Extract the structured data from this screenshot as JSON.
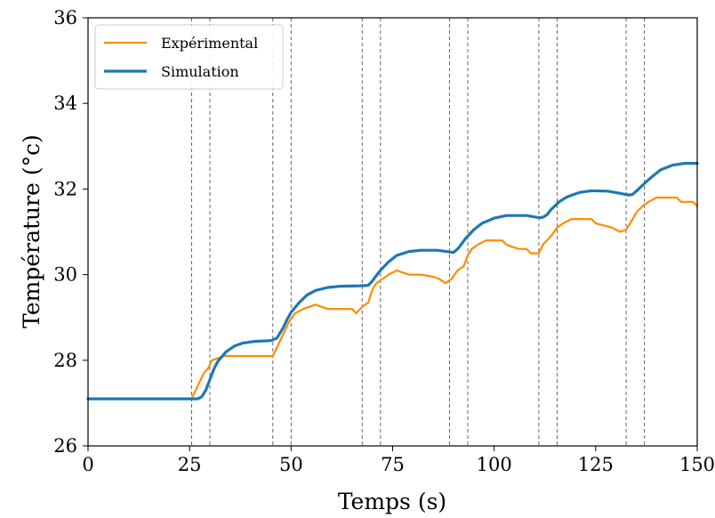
{
  "chart_data": {
    "type": "line",
    "title": "",
    "xlabel": "Temps (s)",
    "ylabel": "Température (°c)",
    "xlim": [
      0,
      150
    ],
    "ylim": [
      26,
      36
    ],
    "xticks": [
      0,
      25,
      50,
      75,
      100,
      125,
      150
    ],
    "yticks": [
      26,
      28,
      30,
      32,
      34,
      36
    ],
    "grid": false,
    "legend_position": "top-left",
    "vlines": [
      25.5,
      30,
      45.5,
      50,
      67.5,
      72,
      89,
      93.5,
      111,
      115.5,
      132.5,
      137
    ],
    "vline_style": "dashed",
    "series": [
      {
        "name": "Expérimental",
        "color": "#ff8c00",
        "points": [
          [
            0,
            27.1
          ],
          [
            25.5,
            27.1
          ],
          [
            26.5,
            27.3
          ],
          [
            27.5,
            27.5
          ],
          [
            28.5,
            27.7
          ],
          [
            29.5,
            27.8
          ],
          [
            30.5,
            28.0
          ],
          [
            32,
            28.05
          ],
          [
            33.5,
            28.1
          ],
          [
            45.5,
            28.1
          ],
          [
            46.5,
            28.3
          ],
          [
            48,
            28.6
          ],
          [
            49.5,
            28.9
          ],
          [
            51,
            29.1
          ],
          [
            53,
            29.2
          ],
          [
            56,
            29.3
          ],
          [
            59,
            29.2
          ],
          [
            62,
            29.2
          ],
          [
            65,
            29.2
          ],
          [
            66,
            29.1
          ],
          [
            67.5,
            29.25
          ],
          [
            69,
            29.35
          ],
          [
            70,
            29.65
          ],
          [
            71,
            29.8
          ],
          [
            72.5,
            29.9
          ],
          [
            74,
            30.0
          ],
          [
            76,
            30.1
          ],
          [
            79,
            30.0
          ],
          [
            82,
            30.0
          ],
          [
            85,
            29.95
          ],
          [
            86.5,
            29.9
          ],
          [
            88,
            29.8
          ],
          [
            89.5,
            29.9
          ],
          [
            91,
            30.1
          ],
          [
            92.5,
            30.2
          ],
          [
            93.5,
            30.45
          ],
          [
            94.5,
            30.6
          ],
          [
            96,
            30.7
          ],
          [
            98,
            30.8
          ],
          [
            102,
            30.8
          ],
          [
            103,
            30.7
          ],
          [
            106,
            30.6
          ],
          [
            108,
            30.6
          ],
          [
            109,
            30.5
          ],
          [
            111,
            30.5
          ],
          [
            112,
            30.7
          ],
          [
            114,
            30.9
          ],
          [
            115.5,
            31.1
          ],
          [
            117,
            31.2
          ],
          [
            119,
            31.3
          ],
          [
            124,
            31.3
          ],
          [
            125,
            31.2
          ],
          [
            129,
            31.1
          ],
          [
            131,
            31.0
          ],
          [
            132.5,
            31.05
          ],
          [
            133.5,
            31.2
          ],
          [
            135,
            31.45
          ],
          [
            136.5,
            31.6
          ],
          [
            138,
            31.7
          ],
          [
            140,
            31.8
          ],
          [
            145,
            31.8
          ],
          [
            146,
            31.7
          ],
          [
            149,
            31.7
          ],
          [
            150,
            31.6
          ]
        ]
      },
      {
        "name": "Simulation",
        "color": "#1f77b4",
        "points": [
          [
            0,
            27.1
          ],
          [
            27,
            27.1
          ],
          [
            28,
            27.15
          ],
          [
            29,
            27.3
          ],
          [
            30,
            27.55
          ],
          [
            31,
            27.8
          ],
          [
            32,
            27.98
          ],
          [
            34,
            28.2
          ],
          [
            36,
            28.33
          ],
          [
            38,
            28.4
          ],
          [
            41,
            28.44
          ],
          [
            45,
            28.46
          ],
          [
            46.5,
            28.52
          ],
          [
            48,
            28.75
          ],
          [
            49,
            28.95
          ],
          [
            50,
            29.12
          ],
          [
            52,
            29.35
          ],
          [
            54,
            29.53
          ],
          [
            56,
            29.63
          ],
          [
            59,
            29.7
          ],
          [
            62,
            29.73
          ],
          [
            67,
            29.74
          ],
          [
            69,
            29.75
          ],
          [
            70,
            29.85
          ],
          [
            71,
            29.98
          ],
          [
            72,
            30.1
          ],
          [
            74,
            30.3
          ],
          [
            76,
            30.45
          ],
          [
            79,
            30.54
          ],
          [
            82,
            30.57
          ],
          [
            86,
            30.57
          ],
          [
            89,
            30.53
          ],
          [
            90,
            30.52
          ],
          [
            91,
            30.6
          ],
          [
            92,
            30.72
          ],
          [
            93,
            30.85
          ],
          [
            95,
            31.05
          ],
          [
            97,
            31.2
          ],
          [
            100,
            31.32
          ],
          [
            103,
            31.38
          ],
          [
            108,
            31.38
          ],
          [
            111,
            31.33
          ],
          [
            112,
            31.34
          ],
          [
            113,
            31.4
          ],
          [
            114,
            31.52
          ],
          [
            116,
            31.7
          ],
          [
            118,
            31.82
          ],
          [
            121,
            31.92
          ],
          [
            124,
            31.96
          ],
          [
            128,
            31.95
          ],
          [
            131,
            31.9
          ],
          [
            133,
            31.86
          ],
          [
            134,
            31.87
          ],
          [
            135,
            31.95
          ],
          [
            137,
            32.13
          ],
          [
            139,
            32.3
          ],
          [
            141,
            32.45
          ],
          [
            144,
            32.56
          ],
          [
            147,
            32.6
          ],
          [
            150,
            32.6
          ]
        ]
      }
    ]
  }
}
